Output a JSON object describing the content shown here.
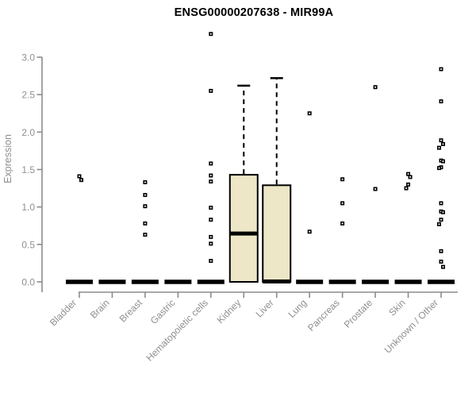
{
  "title": "ENSG00000207638 - MIR99A",
  "colors": {
    "background": "#ffffff",
    "axis": "#8c8c8c",
    "tick_label": "#8f8f8f",
    "title": "#000000",
    "box_fill": "#ede6c7",
    "box_border": "#000000",
    "point": "#000000"
  },
  "chart_data": {
    "type": "boxplot",
    "title": "ENSG00000207638 - MIR99A",
    "xlabel": "",
    "ylabel": "Expression",
    "ylim": [
      0,
      3.35
    ],
    "yticks": [
      0.0,
      0.5,
      1.0,
      1.5,
      2.0,
      2.5,
      3.0
    ],
    "grid": false,
    "legend": false,
    "categories": [
      "Bladder",
      "Brain",
      "Breast",
      "Gastric",
      "Hematopoietic cells",
      "Kidney",
      "Liver",
      "Lung",
      "Pancreas",
      "Prostate",
      "Skin",
      "Unknown / Other"
    ],
    "boxes": [
      {
        "category": "Bladder",
        "q1": 0,
        "median": 0,
        "q3": 0,
        "whisker_low": 0,
        "whisker_high": 0,
        "outliers": [
          1.41,
          1.36
        ]
      },
      {
        "category": "Brain",
        "q1": 0,
        "median": 0,
        "q3": 0,
        "whisker_low": 0,
        "whisker_high": 0,
        "outliers": []
      },
      {
        "category": "Breast",
        "q1": 0,
        "median": 0,
        "q3": 0,
        "whisker_low": 0,
        "whisker_high": 0,
        "outliers": [
          1.33,
          1.16,
          1.01,
          0.78,
          0.63
        ]
      },
      {
        "category": "Gastric",
        "q1": 0,
        "median": 0,
        "q3": 0,
        "whisker_low": 0,
        "whisker_high": 0,
        "outliers": []
      },
      {
        "category": "Hematopoietic cells",
        "q1": 0,
        "median": 0,
        "q3": 0,
        "whisker_low": 0,
        "whisker_high": 0,
        "outliers": [
          3.31,
          2.55,
          1.58,
          1.42,
          1.34,
          0.99,
          0.83,
          0.6,
          0.51,
          0.28
        ]
      },
      {
        "category": "Kidney",
        "q1": 0,
        "median": 0.64,
        "q3": 1.43,
        "whisker_low": 0,
        "whisker_high": 2.62,
        "outliers": []
      },
      {
        "category": "Liver",
        "q1": 0,
        "median": 0,
        "q3": 1.29,
        "whisker_low": 0,
        "whisker_high": 2.72,
        "outliers": []
      },
      {
        "category": "Lung",
        "q1": 0,
        "median": 0,
        "q3": 0,
        "whisker_low": 0,
        "whisker_high": 0,
        "outliers": [
          2.25,
          0.67
        ]
      },
      {
        "category": "Pancreas",
        "q1": 0,
        "median": 0,
        "q3": 0,
        "whisker_low": 0,
        "whisker_high": 0,
        "outliers": [
          1.37,
          1.05,
          0.78
        ]
      },
      {
        "category": "Prostate",
        "q1": 0,
        "median": 0,
        "q3": 0,
        "whisker_low": 0,
        "whisker_high": 0,
        "outliers": [
          2.6,
          1.24
        ]
      },
      {
        "category": "Skin",
        "q1": 0,
        "median": 0,
        "q3": 0,
        "whisker_low": 0,
        "whisker_high": 0,
        "outliers": [
          1.44,
          1.4,
          1.3,
          1.25
        ]
      },
      {
        "category": "Unknown / Other",
        "q1": 0,
        "median": 0,
        "q3": 0,
        "whisker_low": 0,
        "whisker_high": 0,
        "outliers": [
          2.84,
          2.41,
          1.89,
          1.84,
          1.79,
          1.62,
          1.61,
          1.53,
          1.52,
          1.05,
          0.94,
          0.93,
          0.83,
          0.77,
          0.41,
          0.27,
          0.2
        ]
      }
    ]
  }
}
